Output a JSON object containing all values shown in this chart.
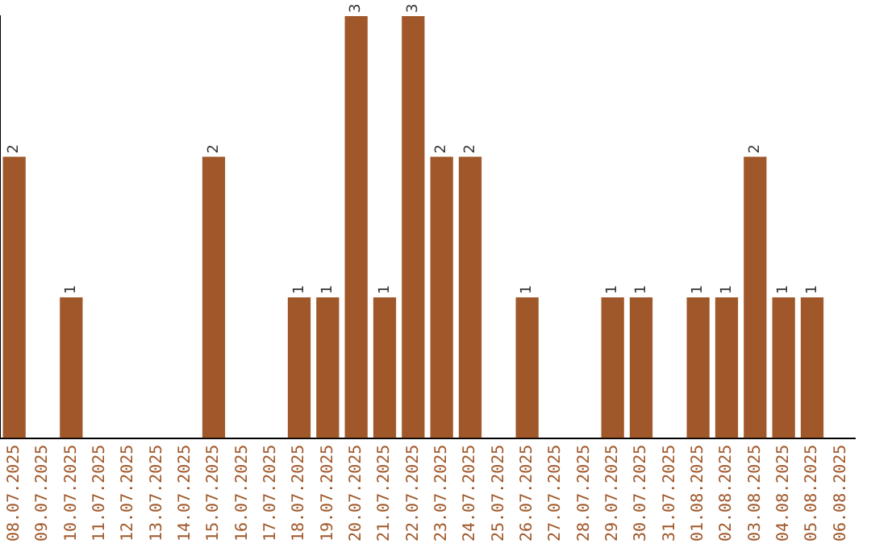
{
  "chart_data": {
    "type": "bar",
    "categories": [
      "08.07.2025",
      "09.07.2025",
      "10.07.2025",
      "11.07.2025",
      "12.07.2025",
      "13.07.2025",
      "14.07.2025",
      "15.07.2025",
      "16.07.2025",
      "17.07.2025",
      "18.07.2025",
      "19.07.2025",
      "20.07.2025",
      "21.07.2025",
      "22.07.2025",
      "23.07.2025",
      "24.07.2025",
      "25.07.2025",
      "26.07.2025",
      "27.07.2025",
      "28.07.2025",
      "29.07.2025",
      "30.07.2025",
      "31.07.2025",
      "01.08.2025",
      "02.08.2025",
      "03.08.2025",
      "04.08.2025",
      "05.08.2025",
      "06.08.2025"
    ],
    "values": [
      2,
      0,
      1,
      0,
      0,
      0,
      0,
      2,
      0,
      0,
      1,
      1,
      3,
      1,
      3,
      2,
      2,
      0,
      1,
      0,
      0,
      1,
      1,
      0,
      1,
      1,
      2,
      1,
      1,
      0
    ],
    "value_labels": [
      "2",
      null,
      "1",
      null,
      null,
      null,
      null,
      "2",
      null,
      null,
      "1",
      "1",
      "3",
      "1",
      "3",
      "2",
      "2",
      null,
      "1",
      null,
      null,
      "1",
      "1",
      null,
      "1",
      "1",
      "2",
      "1",
      "1",
      null
    ],
    "color": "#a0582a",
    "grid": false,
    "legend": false,
    "tick_labels": "x"
  }
}
